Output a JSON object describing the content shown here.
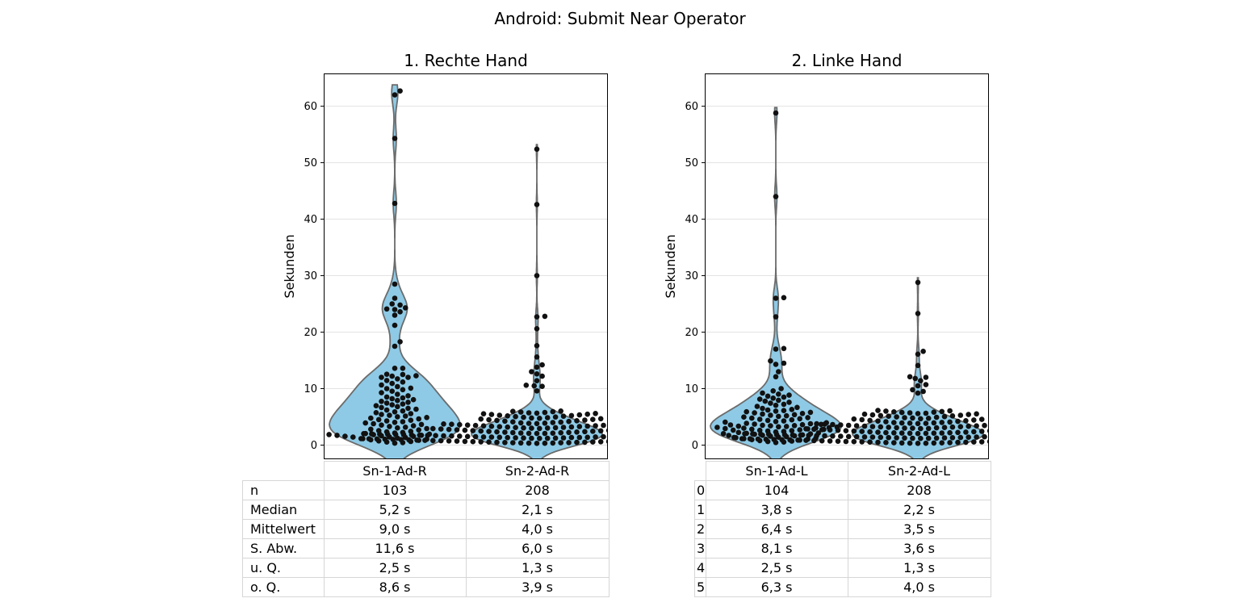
{
  "figure": {
    "title": "Android: Submit Near Operator"
  },
  "chart_data": [
    {
      "type": "violin+swarm",
      "title": "1. Rechte Hand",
      "ylabel": "Sekunden",
      "xlabel": "",
      "ylim": [
        -2.5,
        65.8
      ],
      "yticks": [
        0,
        10,
        20,
        30,
        40,
        50,
        60
      ],
      "grid": "y",
      "categories": [
        "Sn-1-Ad-R",
        "Sn-2-Ad-R"
      ],
      "violin_color": "#8ecae6",
      "point_color": "#111111",
      "series": [
        {
          "category": "Sn-1-Ad-R",
          "n": 103,
          "median": 5.2,
          "mean": 9.0,
          "q1": 2.5,
          "q3": 8.6,
          "outliers": [
            62.7,
            62.0,
            54.3,
            42.8,
            28.5,
            26.0,
            25.0,
            24.8,
            24.3,
            24.1,
            24.0,
            23.6,
            23.0,
            21.2,
            18.3,
            17.5,
            13.6,
            13.6,
            12.2,
            12.0,
            12.5,
            10.0
          ]
        },
        {
          "category": "Sn-2-Ad-R",
          "n": 208,
          "median": 2.1,
          "mean": 4.0,
          "q1": 1.3,
          "q3": 3.9,
          "outliers": [
            52.4,
            42.6,
            30.0,
            22.8,
            22.7,
            20.6,
            17.6,
            15.6,
            14.2,
            13.8,
            13.0,
            12.6,
            12.2,
            11.4,
            10.6,
            10.5,
            10.4,
            9.6
          ]
        }
      ],
      "table": {
        "rows": [
          "n",
          "Median",
          "Mittelwert",
          "S. Abw.",
          "u. Q.",
          "o. Q."
        ],
        "cells": [
          [
            "103",
            "208"
          ],
          [
            "5,2 s",
            "2,1 s"
          ],
          [
            "9,0 s",
            "4,0 s"
          ],
          [
            "11,6 s",
            "6,0 s"
          ],
          [
            "2,5 s",
            "1,3 s"
          ],
          [
            "8,6 s",
            "3,9 s"
          ]
        ]
      }
    },
    {
      "type": "violin+swarm",
      "title": "2. Linke Hand",
      "ylabel": "Sekunden",
      "xlabel": "",
      "ylim": [
        -2.5,
        65.8
      ],
      "yticks": [
        0,
        10,
        20,
        30,
        40,
        50,
        60
      ],
      "grid": "y",
      "categories": [
        "Sn-1-Ad-L",
        "Sn-2-Ad-L"
      ],
      "violin_color": "#8ecae6",
      "point_color": "#111111",
      "series": [
        {
          "category": "Sn-1-Ad-L",
          "n": 104,
          "median": 3.8,
          "mean": 6.4,
          "q1": 2.5,
          "q3": 6.3,
          "outliers": [
            58.8,
            44.0,
            26.1,
            26.0,
            22.7,
            17.1,
            17.0,
            14.9,
            14.5,
            14.3,
            13.0,
            12.1,
            10.0,
            9.6
          ]
        },
        {
          "category": "Sn-2-Ad-L",
          "n": 208,
          "median": 2.2,
          "mean": 3.5,
          "q1": 1.3,
          "q3": 4.0,
          "outliers": [
            28.8,
            23.3,
            16.6,
            16.1,
            14.1,
            12.1,
            12.0,
            11.8,
            11.4,
            10.7,
            10.5,
            9.8,
            9.5,
            9.2
          ]
        }
      ],
      "table": {
        "rows": [
          "0",
          "1",
          "2",
          "3",
          "4",
          "5"
        ],
        "cells": [
          [
            "104",
            "208"
          ],
          [
            "3,8 s",
            "2,2 s"
          ],
          [
            "6,4 s",
            "3,5 s"
          ],
          [
            "8,1 s",
            "3,6 s"
          ],
          [
            "2,5 s",
            "1,3 s"
          ],
          [
            "6,3 s",
            "4,0 s"
          ]
        ]
      }
    }
  ]
}
